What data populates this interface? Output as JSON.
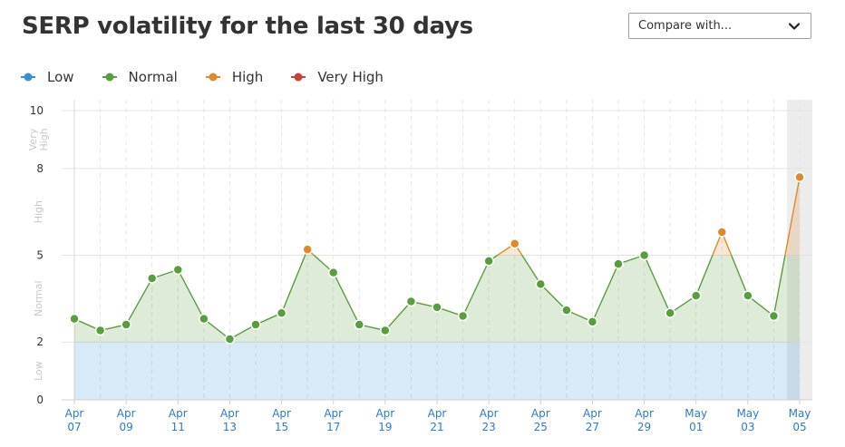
{
  "header": {
    "title": "SERP volatility for the last 30 days"
  },
  "compare": {
    "label": "Compare with...",
    "icon": "chevron-down-icon"
  },
  "legend": [
    {
      "label": "Low",
      "color": "#3c8fd5"
    },
    {
      "label": "Normal",
      "color": "#5a9d3e"
    },
    {
      "label": "High",
      "color": "#e0892b"
    },
    {
      "label": "Very High",
      "color": "#c8403a"
    }
  ],
  "chart_data": {
    "type": "line",
    "title": "SERP volatility for the last 30 days",
    "xlabel": "",
    "ylabel": "",
    "ylim": [
      0,
      10
    ],
    "yticks": [
      0,
      2,
      5,
      8,
      10
    ],
    "zones": [
      {
        "name": "Low",
        "from": 0,
        "to": 2,
        "color": "#3c8fd5"
      },
      {
        "name": "Normal",
        "from": 2,
        "to": 5,
        "color": "#5a9d3e"
      },
      {
        "name": "High",
        "from": 5,
        "to": 8,
        "color": "#e0892b"
      },
      {
        "name": "Very High",
        "from": 8,
        "to": 10,
        "color": "#c8403a"
      }
    ],
    "x_tick_labels": [
      [
        "Apr",
        "07"
      ],
      [
        "Apr",
        "09"
      ],
      [
        "Apr",
        "11"
      ],
      [
        "Apr",
        "13"
      ],
      [
        "Apr",
        "15"
      ],
      [
        "Apr",
        "17"
      ],
      [
        "Apr",
        "19"
      ],
      [
        "Apr",
        "21"
      ],
      [
        "Apr",
        "23"
      ],
      [
        "Apr",
        "25"
      ],
      [
        "Apr",
        "27"
      ],
      [
        "Apr",
        "29"
      ],
      [
        "May",
        "01"
      ],
      [
        "May",
        "03"
      ],
      [
        "May",
        "05"
      ]
    ],
    "x": [
      "Apr 07",
      "Apr 08",
      "Apr 09",
      "Apr 10",
      "Apr 11",
      "Apr 12",
      "Apr 13",
      "Apr 14",
      "Apr 15",
      "Apr 16",
      "Apr 17",
      "Apr 18",
      "Apr 19",
      "Apr 20",
      "Apr 21",
      "Apr 22",
      "Apr 23",
      "Apr 24",
      "Apr 25",
      "Apr 26",
      "Apr 27",
      "Apr 28",
      "Apr 29",
      "Apr 30",
      "May 01",
      "May 02",
      "May 03",
      "May 04",
      "May 05"
    ],
    "series": [
      {
        "values": [
          2.8,
          2.4,
          2.6,
          4.2,
          4.5,
          2.8,
          2.1,
          2.6,
          3.0,
          5.2,
          4.4,
          2.6,
          2.4,
          3.4,
          3.2,
          2.9,
          4.8,
          5.4,
          4.0,
          3.1,
          2.7,
          4.7,
          5.0,
          3.0,
          3.6,
          5.8,
          3.6,
          2.9,
          7.7
        ]
      }
    ],
    "grid": true,
    "highlight": "May 05"
  }
}
